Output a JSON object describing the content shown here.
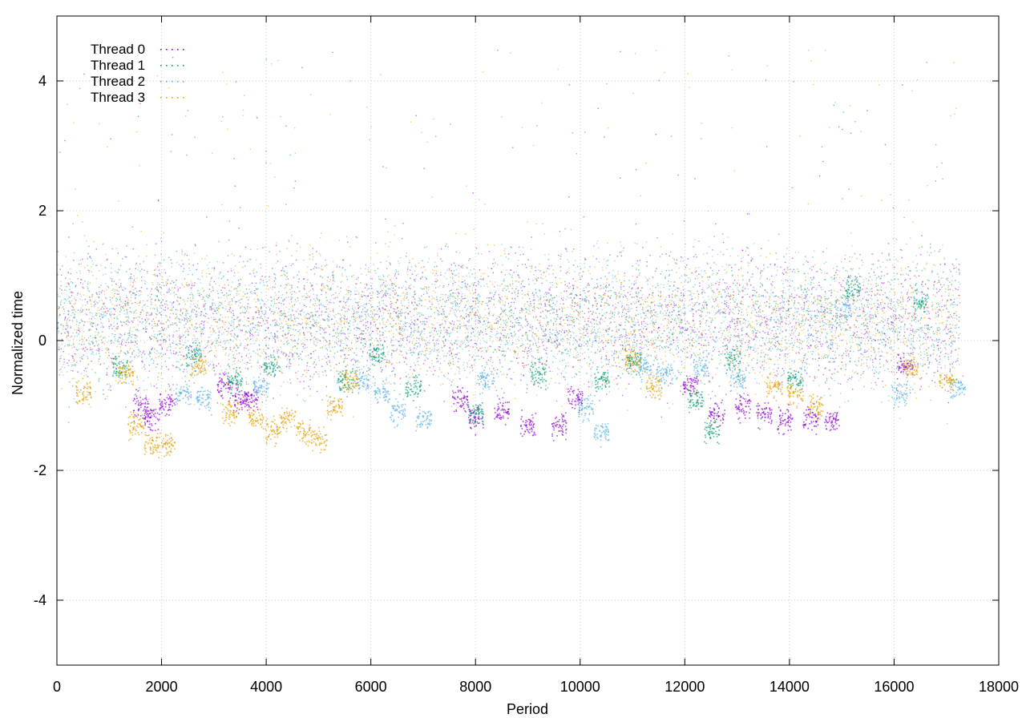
{
  "chart_data": {
    "type": "scatter",
    "title": "",
    "xlabel": "Period",
    "ylabel": "Normalized time",
    "xlim": [
      0,
      18000
    ],
    "ylim": [
      -5,
      5
    ],
    "xticks": [
      0,
      2000,
      4000,
      6000,
      8000,
      10000,
      12000,
      14000,
      16000,
      18000
    ],
    "yticks": [
      -4,
      -2,
      0,
      2,
      4
    ],
    "xtick_labels": [
      "0",
      "2000",
      "4000",
      "6000",
      "8000",
      "10000",
      "12000",
      "14000",
      "16000",
      "18000"
    ],
    "ytick_labels": [
      "-4",
      "-2",
      "0",
      "2",
      "4"
    ],
    "grid": true,
    "legend_position": "top-left",
    "series": [
      {
        "name": "Thread 0",
        "color": "#9400d3",
        "x_range": [
          0,
          17250
        ],
        "points": [
          [
            1600,
            -1.0
          ],
          [
            1800,
            -1.2
          ],
          [
            2100,
            -1.0
          ],
          [
            3200,
            -0.7
          ],
          [
            3500,
            -0.9
          ],
          [
            3700,
            -0.9
          ],
          [
            7700,
            -0.9
          ],
          [
            8000,
            -1.2
          ],
          [
            8500,
            -1.1
          ],
          [
            9000,
            -1.3
          ],
          [
            9600,
            -1.3
          ],
          [
            9900,
            -0.9
          ],
          [
            12100,
            -0.7
          ],
          [
            12600,
            -1.1
          ],
          [
            13100,
            -1.0
          ],
          [
            13500,
            -1.1
          ],
          [
            13900,
            -1.2
          ],
          [
            14400,
            -1.2
          ],
          [
            14800,
            -1.2
          ],
          [
            16200,
            -0.4
          ]
        ]
      },
      {
        "name": "Thread 1",
        "color": "#009e73",
        "x_range": [
          0,
          17250
        ],
        "points": [
          [
            1200,
            -0.4
          ],
          [
            2600,
            -0.2
          ],
          [
            3400,
            -0.6
          ],
          [
            4100,
            -0.4
          ],
          [
            5500,
            -0.6
          ],
          [
            6100,
            -0.2
          ],
          [
            6800,
            -0.7
          ],
          [
            8000,
            -1.1
          ],
          [
            9200,
            -0.5
          ],
          [
            10400,
            -0.6
          ],
          [
            11000,
            -0.3
          ],
          [
            12200,
            -0.9
          ],
          [
            12500,
            -1.4
          ],
          [
            12900,
            -0.3
          ],
          [
            14100,
            -0.6
          ],
          [
            15200,
            0.8
          ],
          [
            16500,
            0.6
          ]
        ]
      },
      {
        "name": "Thread 2",
        "color": "#56b4e9",
        "x_range": [
          0,
          17250
        ],
        "points": [
          [
            2400,
            -0.8
          ],
          [
            2800,
            -0.9
          ],
          [
            3900,
            -0.7
          ],
          [
            5800,
            -0.6
          ],
          [
            6200,
            -0.8
          ],
          [
            6500,
            -1.1
          ],
          [
            7000,
            -1.2
          ],
          [
            8200,
            -0.6
          ],
          [
            10100,
            -1.0
          ],
          [
            10400,
            -1.4
          ],
          [
            11200,
            -0.4
          ],
          [
            11600,
            -0.5
          ],
          [
            12300,
            -0.4
          ],
          [
            13000,
            -0.6
          ],
          [
            15000,
            0.5
          ],
          [
            16100,
            -0.8
          ],
          [
            17200,
            -0.7
          ]
        ]
      },
      {
        "name": "Thread 3",
        "color": "#e69f00",
        "x_range": [
          0,
          17250
        ],
        "points": [
          [
            500,
            -0.8
          ],
          [
            1300,
            -0.5
          ],
          [
            1500,
            -1.3
          ],
          [
            1800,
            -1.6
          ],
          [
            2100,
            -1.6
          ],
          [
            2700,
            -0.4
          ],
          [
            3300,
            -1.1
          ],
          [
            3800,
            -1.2
          ],
          [
            4100,
            -1.4
          ],
          [
            4400,
            -1.2
          ],
          [
            4700,
            -1.4
          ],
          [
            5000,
            -1.5
          ],
          [
            5300,
            -1.0
          ],
          [
            5600,
            -0.6
          ],
          [
            11000,
            -0.3
          ],
          [
            11400,
            -0.7
          ],
          [
            13700,
            -0.7
          ],
          [
            14100,
            -0.8
          ],
          [
            14500,
            -1.0
          ],
          [
            16300,
            -0.4
          ],
          [
            17000,
            -0.6
          ]
        ]
      }
    ]
  }
}
